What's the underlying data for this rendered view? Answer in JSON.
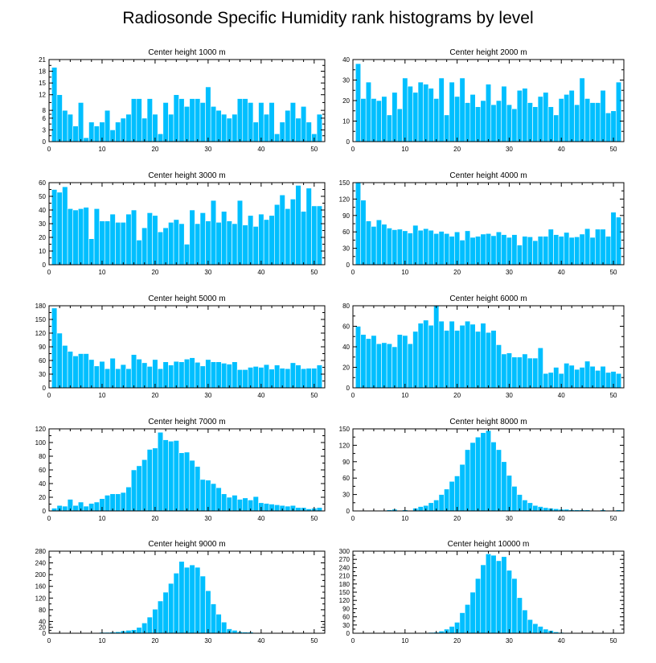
{
  "figure_title": "Radiosonde Specific Humidity rank histograms by level",
  "colors": {
    "bar": "#00bfff",
    "bar_edge": "#ffffff",
    "axis": "#000000",
    "background": "#ffffff"
  },
  "chart_data": [
    {
      "type": "bar",
      "title": "Center height 1000 m",
      "xlabel": "",
      "ylabel": "",
      "xlim": [
        0,
        52
      ],
      "ylim": [
        0,
        21
      ],
      "xticks": [
        0,
        10,
        20,
        30,
        40,
        50
      ],
      "yticks": [
        0,
        3,
        6,
        8,
        12,
        15,
        18,
        21
      ],
      "x": [
        1,
        2,
        3,
        4,
        5,
        6,
        7,
        8,
        9,
        10,
        11,
        12,
        13,
        14,
        15,
        16,
        17,
        18,
        19,
        20,
        21,
        22,
        23,
        24,
        25,
        26,
        27,
        28,
        29,
        30,
        31,
        32,
        33,
        34,
        35,
        36,
        37,
        38,
        39,
        40,
        41,
        42,
        43,
        44,
        45,
        46,
        47,
        48,
        49,
        50,
        51
      ],
      "values": [
        19,
        12,
        8,
        7,
        4,
        10,
        1,
        5,
        4,
        5,
        8,
        3,
        5,
        6,
        7,
        11,
        11,
        6,
        11,
        7,
        2,
        10,
        7,
        12,
        11,
        9,
        11,
        11,
        10,
        14,
        9,
        8,
        7,
        6,
        7,
        11,
        11,
        10,
        5,
        10,
        7,
        10,
        2,
        5,
        8,
        10,
        6,
        9,
        5,
        2,
        7
      ]
    },
    {
      "type": "bar",
      "title": "Center height 2000 m",
      "xlabel": "",
      "ylabel": "",
      "xlim": [
        0,
        52
      ],
      "ylim": [
        0,
        40
      ],
      "xticks": [
        0,
        10,
        20,
        30,
        40,
        50
      ],
      "yticks": [
        0,
        10,
        20,
        30,
        40
      ],
      "x": [
        1,
        2,
        3,
        4,
        5,
        6,
        7,
        8,
        9,
        10,
        11,
        12,
        13,
        14,
        15,
        16,
        17,
        18,
        19,
        20,
        21,
        22,
        23,
        24,
        25,
        26,
        27,
        28,
        29,
        30,
        31,
        32,
        33,
        34,
        35,
        36,
        37,
        38,
        39,
        40,
        41,
        42,
        43,
        44,
        45,
        46,
        47,
        48,
        49,
        50,
        51
      ],
      "values": [
        38,
        21,
        29,
        21,
        20,
        22,
        13,
        24,
        16,
        31,
        27,
        24,
        29,
        28,
        26,
        21,
        31,
        13,
        29,
        22,
        31,
        19,
        23,
        17,
        20,
        28,
        18,
        20,
        27,
        18,
        16,
        25,
        26,
        19,
        17,
        22,
        24,
        17,
        13,
        21,
        23,
        25,
        18,
        31,
        21,
        19,
        19,
        25,
        14,
        15,
        29
      ]
    },
    {
      "type": "bar",
      "title": "Center height 3000 m",
      "xlabel": "",
      "ylabel": "",
      "xlim": [
        0,
        52
      ],
      "ylim": [
        0,
        60
      ],
      "xticks": [
        0,
        10,
        20,
        30,
        40,
        50
      ],
      "yticks": [
        0,
        10,
        20,
        30,
        40,
        50,
        60
      ],
      "x": [
        1,
        2,
        3,
        4,
        5,
        6,
        7,
        8,
        9,
        10,
        11,
        12,
        13,
        14,
        15,
        16,
        17,
        18,
        19,
        20,
        21,
        22,
        23,
        24,
        25,
        26,
        27,
        28,
        29,
        30,
        31,
        32,
        33,
        34,
        35,
        36,
        37,
        38,
        39,
        40,
        41,
        42,
        43,
        44,
        45,
        46,
        47,
        48,
        49,
        50,
        51
      ],
      "values": [
        55,
        53,
        57,
        41,
        40,
        41,
        42,
        19,
        41,
        32,
        32,
        37,
        31,
        31,
        37,
        40,
        18,
        27,
        38,
        36,
        24,
        27,
        31,
        33,
        30,
        15,
        40,
        30,
        38,
        32,
        47,
        31,
        39,
        32,
        30,
        47,
        29,
        36,
        28,
        37,
        33,
        36,
        44,
        51,
        41,
        48,
        58,
        39,
        56,
        43,
        43
      ]
    },
    {
      "type": "bar",
      "title": "Center height 4000 m",
      "xlabel": "",
      "ylabel": "",
      "xlim": [
        0,
        52
      ],
      "ylim": [
        0,
        150
      ],
      "xticks": [
        0,
        10,
        20,
        30,
        40,
        50
      ],
      "yticks": [
        0,
        30,
        60,
        90,
        120,
        150
      ],
      "x": [
        1,
        2,
        3,
        4,
        5,
        6,
        7,
        8,
        9,
        10,
        11,
        12,
        13,
        14,
        15,
        16,
        17,
        18,
        19,
        20,
        21,
        22,
        23,
        24,
        25,
        26,
        27,
        28,
        29,
        30,
        31,
        32,
        33,
        34,
        35,
        36,
        37,
        38,
        39,
        40,
        41,
        42,
        43,
        44,
        45,
        46,
        47,
        48,
        49,
        50,
        51
      ],
      "values": [
        150,
        118,
        80,
        70,
        82,
        74,
        67,
        64,
        65,
        62,
        58,
        72,
        63,
        66,
        63,
        57,
        61,
        57,
        52,
        60,
        45,
        62,
        50,
        52,
        56,
        57,
        53,
        60,
        55,
        50,
        55,
        36,
        52,
        51,
        44,
        52,
        52,
        65,
        55,
        52,
        59,
        50,
        51,
        56,
        66,
        50,
        65,
        65,
        52,
        96,
        87
      ]
    },
    {
      "type": "bar",
      "title": "Center height 5000 m",
      "xlabel": "",
      "ylabel": "",
      "xlim": [
        0,
        52
      ],
      "ylim": [
        0,
        180
      ],
      "xticks": [
        0,
        10,
        20,
        30,
        40,
        50
      ],
      "yticks": [
        0,
        30,
        60,
        90,
        120,
        150,
        180
      ],
      "x": [
        1,
        2,
        3,
        4,
        5,
        6,
        7,
        8,
        9,
        10,
        11,
        12,
        13,
        14,
        15,
        16,
        17,
        18,
        19,
        20,
        21,
        22,
        23,
        24,
        25,
        26,
        27,
        28,
        29,
        30,
        31,
        32,
        33,
        34,
        35,
        36,
        37,
        38,
        39,
        40,
        41,
        42,
        43,
        44,
        45,
        46,
        47,
        48,
        49,
        50,
        51
      ],
      "values": [
        175,
        120,
        93,
        80,
        70,
        75,
        75,
        62,
        48,
        58,
        42,
        65,
        42,
        51,
        42,
        73,
        63,
        55,
        47,
        62,
        42,
        57,
        50,
        58,
        57,
        63,
        66,
        56,
        48,
        62,
        57,
        57,
        54,
        52,
        57,
        40,
        40,
        45,
        47,
        45,
        51,
        41,
        50,
        43,
        42,
        55,
        50,
        42,
        43,
        43,
        50
      ]
    },
    {
      "type": "bar",
      "title": "Center height 6000 m",
      "xlabel": "",
      "ylabel": "",
      "xlim": [
        0,
        52
      ],
      "ylim": [
        0,
        80
      ],
      "xticks": [
        0,
        10,
        20,
        30,
        40,
        50
      ],
      "yticks": [
        0,
        20,
        40,
        60,
        80
      ],
      "x": [
        1,
        2,
        3,
        4,
        5,
        6,
        7,
        8,
        9,
        10,
        11,
        12,
        13,
        14,
        15,
        16,
        17,
        18,
        19,
        20,
        21,
        22,
        23,
        24,
        25,
        26,
        27,
        28,
        29,
        30,
        31,
        32,
        33,
        34,
        35,
        36,
        37,
        38,
        39,
        40,
        41,
        42,
        43,
        44,
        45,
        46,
        47,
        48,
        49,
        50,
        51
      ],
      "values": [
        60,
        52,
        48,
        51,
        43,
        44,
        43,
        40,
        52,
        51,
        43,
        55,
        63,
        66,
        61,
        80,
        65,
        56,
        65,
        56,
        61,
        65,
        62,
        55,
        63,
        54,
        56,
        42,
        33,
        34,
        30,
        30,
        33,
        29,
        29,
        39,
        14,
        15,
        20,
        14,
        24,
        22,
        18,
        20,
        26,
        21,
        17,
        21,
        15,
        16,
        14
      ]
    },
    {
      "type": "bar",
      "title": "Center height 7000 m",
      "xlabel": "",
      "ylabel": "",
      "xlim": [
        0,
        52
      ],
      "ylim": [
        0,
        120
      ],
      "xticks": [
        0,
        10,
        20,
        30,
        40,
        50
      ],
      "yticks": [
        0,
        20,
        40,
        60,
        80,
        100,
        120
      ],
      "x": [
        1,
        2,
        3,
        4,
        5,
        6,
        7,
        8,
        9,
        10,
        11,
        12,
        13,
        14,
        15,
        16,
        17,
        18,
        19,
        20,
        21,
        22,
        23,
        24,
        25,
        26,
        27,
        28,
        29,
        30,
        31,
        32,
        33,
        34,
        35,
        36,
        37,
        38,
        39,
        40,
        41,
        42,
        43,
        44,
        45,
        46,
        47,
        48,
        49,
        50,
        51
      ],
      "values": [
        4,
        8,
        7,
        17,
        8,
        13,
        7,
        11,
        13,
        18,
        23,
        25,
        25,
        27,
        35,
        60,
        66,
        75,
        90,
        92,
        115,
        104,
        102,
        103,
        85,
        86,
        74,
        65,
        46,
        45,
        40,
        34,
        25,
        20,
        23,
        17,
        19,
        16,
        21,
        12,
        11,
        10,
        9,
        8,
        7,
        8,
        5,
        5,
        3,
        4,
        5
      ]
    },
    {
      "type": "bar",
      "title": "Center height 8000 m",
      "xlabel": "",
      "ylabel": "",
      "xlim": [
        0,
        52
      ],
      "ylim": [
        0,
        150
      ],
      "xticks": [
        0,
        10,
        20,
        30,
        40,
        50
      ],
      "yticks": [
        0,
        30,
        60,
        90,
        120,
        150
      ],
      "x": [
        1,
        2,
        3,
        4,
        5,
        6,
        7,
        8,
        9,
        10,
        11,
        12,
        13,
        14,
        15,
        16,
        17,
        18,
        19,
        20,
        21,
        22,
        23,
        24,
        25,
        26,
        27,
        28,
        29,
        30,
        31,
        32,
        33,
        34,
        35,
        36,
        37,
        38,
        39,
        40,
        41,
        42,
        43,
        44,
        45,
        46,
        47,
        48,
        49,
        50,
        51
      ],
      "values": [
        0,
        0,
        0,
        0,
        0,
        0,
        2,
        3,
        1,
        2,
        0,
        5,
        8,
        10,
        15,
        20,
        30,
        40,
        54,
        64,
        85,
        112,
        125,
        135,
        143,
        147,
        126,
        112,
        90,
        65,
        45,
        30,
        20,
        15,
        10,
        8,
        6,
        5,
        4,
        3,
        3,
        2,
        2,
        2,
        2,
        1,
        1,
        2,
        1,
        1,
        2
      ]
    },
    {
      "type": "bar",
      "title": "Center height 9000 m",
      "xlabel": "",
      "ylabel": "",
      "xlim": [
        0,
        52
      ],
      "ylim": [
        0,
        280
      ],
      "xticks": [
        0,
        10,
        20,
        30,
        40,
        50
      ],
      "yticks": [
        0,
        20,
        40,
        80,
        120,
        160,
        200,
        240,
        280
      ],
      "x": [
        1,
        2,
        3,
        4,
        5,
        6,
        7,
        8,
        9,
        10,
        11,
        12,
        13,
        14,
        15,
        16,
        17,
        18,
        19,
        20,
        21,
        22,
        23,
        24,
        25,
        26,
        27,
        28,
        29,
        30,
        31,
        32,
        33,
        34,
        35,
        36,
        37,
        38,
        39,
        40,
        41,
        42,
        43,
        44,
        45,
        46,
        47,
        48,
        49,
        50,
        51
      ],
      "values": [
        0,
        0,
        0,
        0,
        0,
        0,
        0,
        2,
        2,
        3,
        3,
        4,
        5,
        8,
        10,
        12,
        20,
        35,
        55,
        82,
        110,
        140,
        170,
        205,
        245,
        225,
        233,
        225,
        195,
        145,
        100,
        65,
        38,
        15,
        10,
        5,
        4,
        4,
        2,
        1,
        1,
        0,
        0,
        0,
        0,
        0,
        0,
        0,
        0,
        0,
        0
      ]
    },
    {
      "type": "bar",
      "title": "Center height 10000 m",
      "xlabel": "",
      "ylabel": "",
      "xlim": [
        0,
        52
      ],
      "ylim": [
        0,
        300
      ],
      "xticks": [
        0,
        10,
        20,
        30,
        40,
        50
      ],
      "yticks": [
        0,
        30,
        60,
        90,
        120,
        150,
        180,
        210,
        240,
        270,
        300
      ],
      "x": [
        1,
        2,
        3,
        4,
        5,
        6,
        7,
        8,
        9,
        10,
        11,
        12,
        13,
        14,
        15,
        16,
        17,
        18,
        19,
        20,
        21,
        22,
        23,
        24,
        25,
        26,
        27,
        28,
        29,
        30,
        31,
        32,
        33,
        34,
        35,
        36,
        37,
        38,
        39,
        40,
        41,
        42,
        43,
        44,
        45,
        46,
        47,
        48,
        49,
        50,
        51
      ],
      "values": [
        0,
        0,
        0,
        0,
        0,
        0,
        0,
        0,
        0,
        0,
        0,
        0,
        0,
        2,
        3,
        4,
        8,
        15,
        25,
        40,
        75,
        105,
        150,
        200,
        250,
        290,
        285,
        265,
        280,
        230,
        200,
        130,
        85,
        50,
        35,
        25,
        15,
        10,
        5,
        3,
        2,
        1,
        1,
        0,
        0,
        0,
        0,
        0,
        0,
        0,
        0
      ]
    }
  ]
}
